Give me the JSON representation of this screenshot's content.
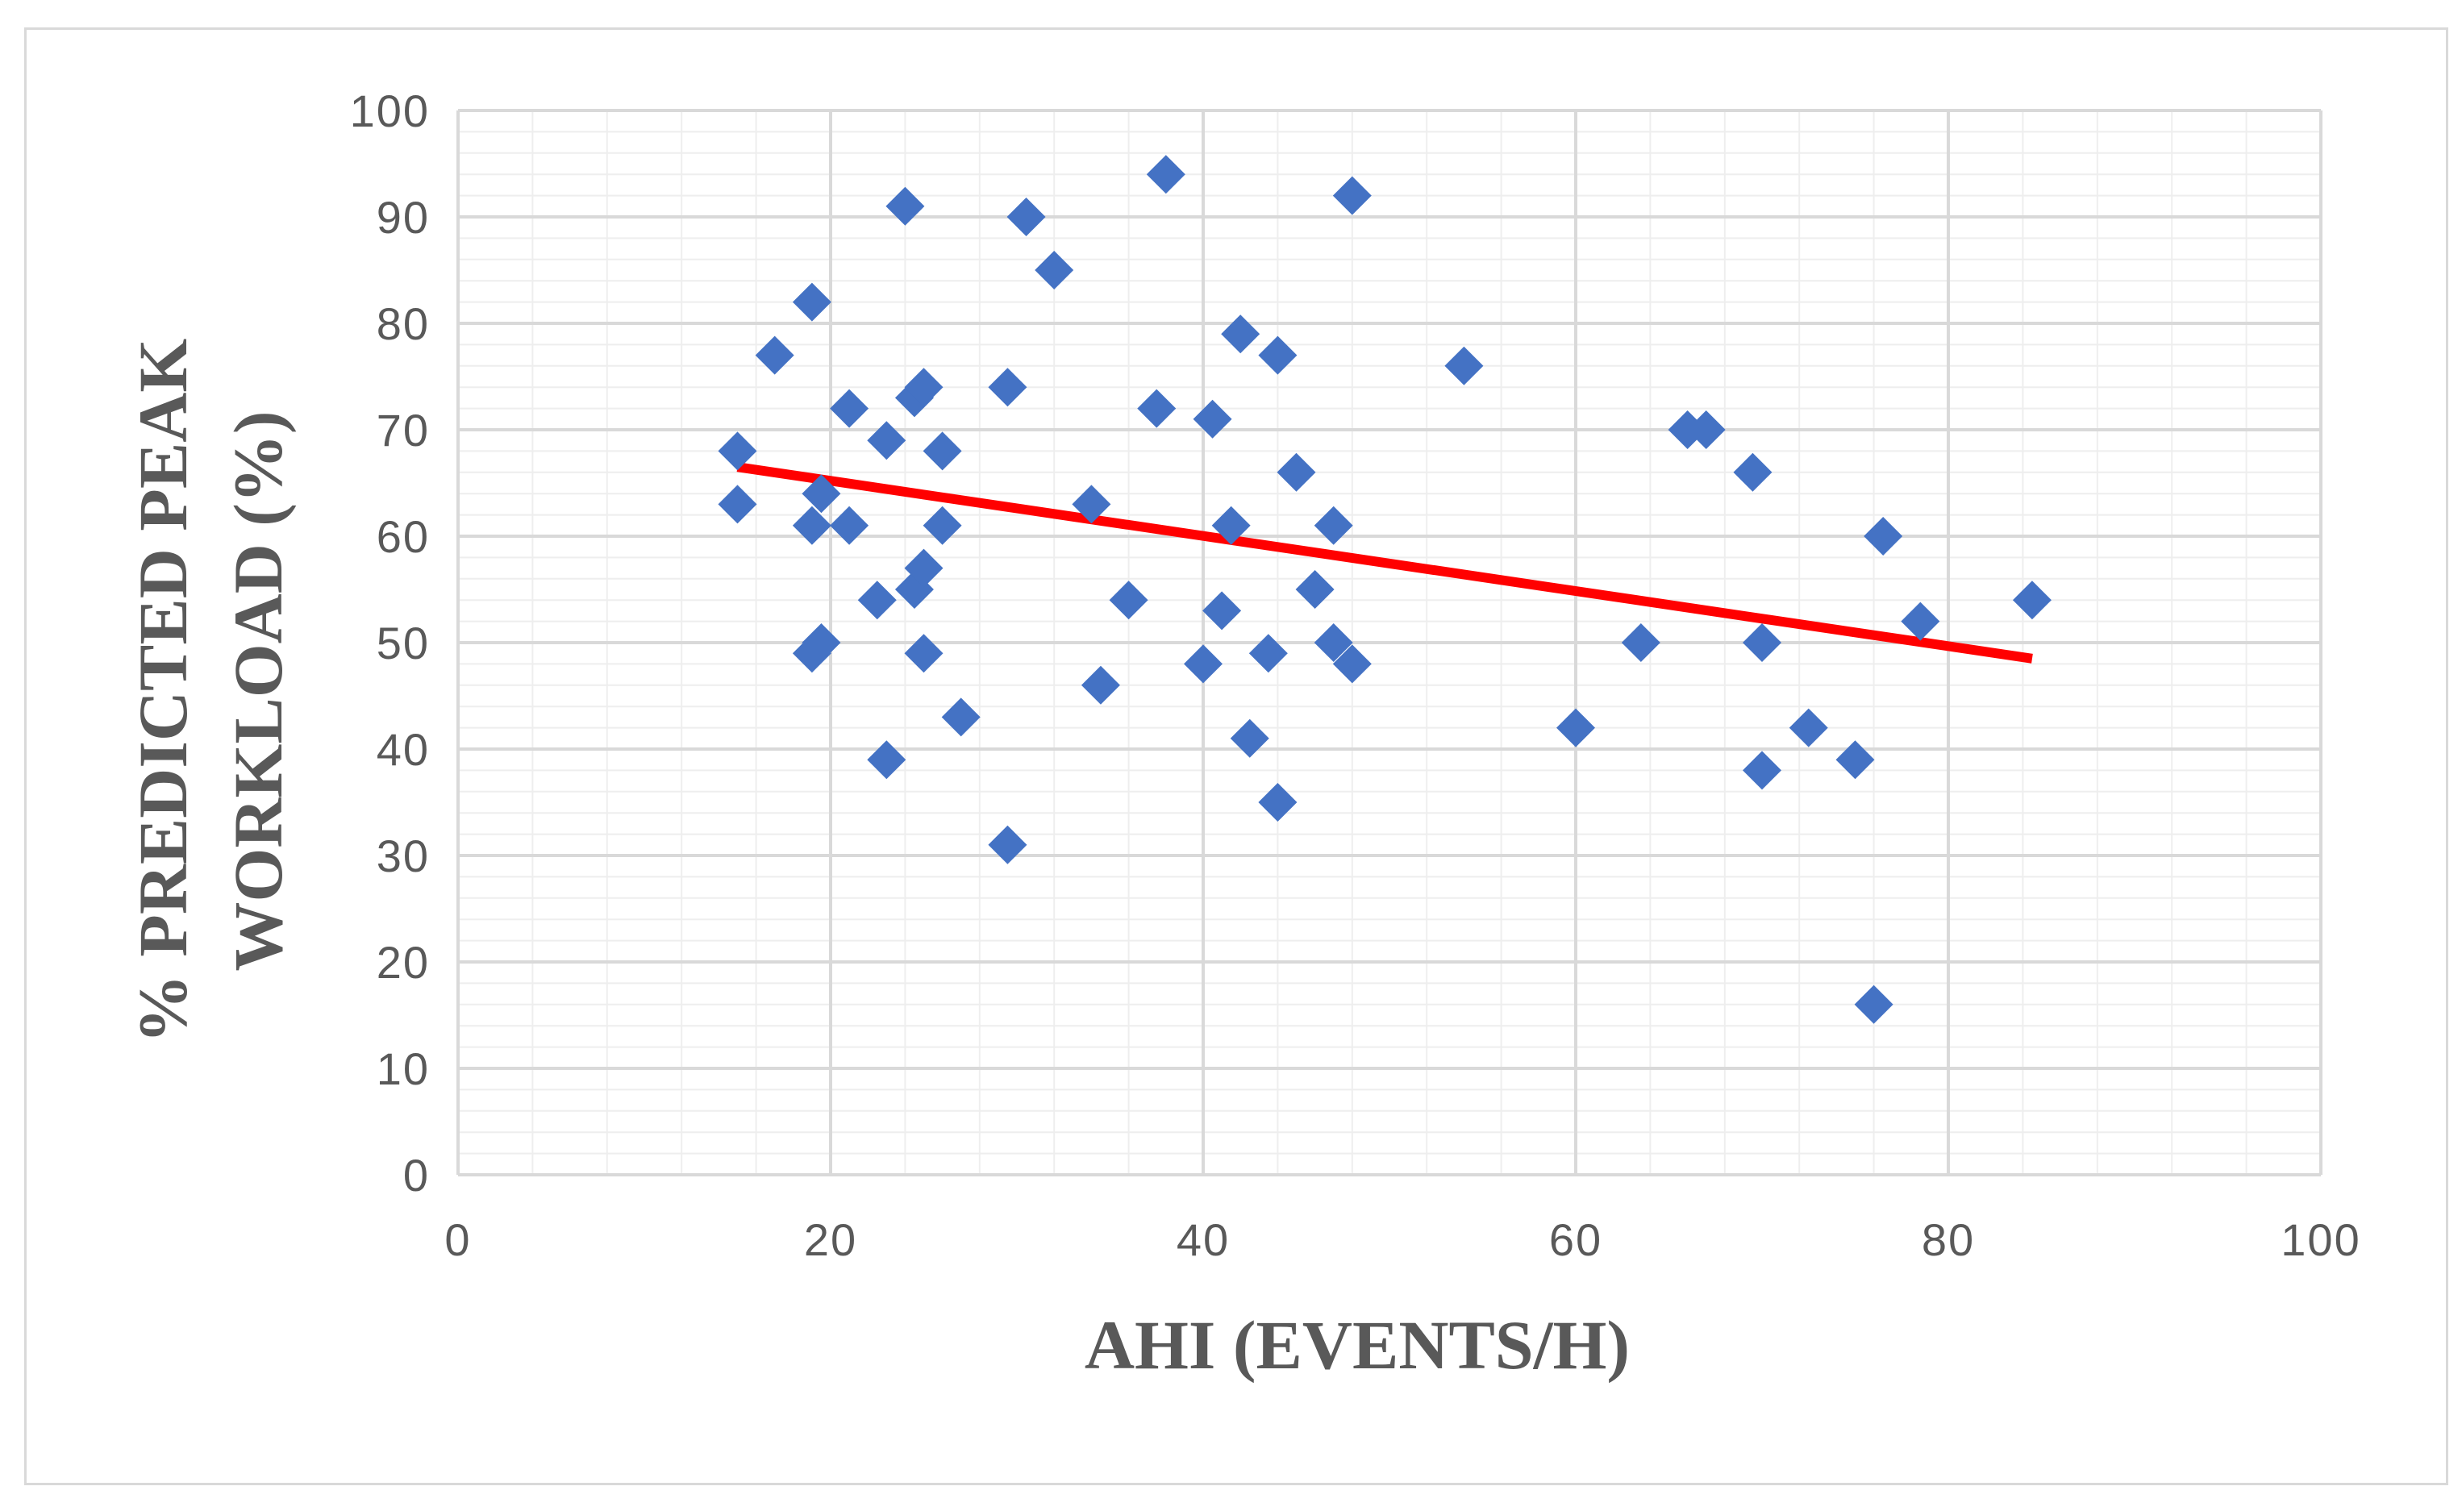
{
  "chart_data": {
    "type": "scatter",
    "xlabel": "AHI (EVENTS/H)",
    "ylabel_lines": [
      "% PREDICTED PEAK",
      "WORKLOAD (%)"
    ],
    "xlim": [
      0,
      100
    ],
    "ylim": [
      0,
      100
    ],
    "x_ticks": [
      "0",
      "20",
      "40",
      "60",
      "80",
      "100"
    ],
    "y_ticks": [
      "0",
      "10",
      "20",
      "30",
      "40",
      "50",
      "60",
      "70",
      "80",
      "90",
      "100"
    ],
    "grid": true,
    "minor_grid": true,
    "marker": "diamond",
    "colors": {
      "points": "#4472c4",
      "trendline": "#ff0000",
      "major_grid": "#d9d9d9",
      "minor_grid": "#eeeeee",
      "text": "#595959"
    },
    "points": [
      {
        "x": 15,
        "y": 68
      },
      {
        "x": 15,
        "y": 63
      },
      {
        "x": 17,
        "y": 77
      },
      {
        "x": 19,
        "y": 82
      },
      {
        "x": 19,
        "y": 61
      },
      {
        "x": 19.5,
        "y": 64
      },
      {
        "x": 19,
        "y": 49
      },
      {
        "x": 19.5,
        "y": 50
      },
      {
        "x": 21,
        "y": 72
      },
      {
        "x": 21,
        "y": 61
      },
      {
        "x": 22.5,
        "y": 54
      },
      {
        "x": 23,
        "y": 69
      },
      {
        "x": 23,
        "y": 39
      },
      {
        "x": 24,
        "y": 91
      },
      {
        "x": 24.5,
        "y": 73
      },
      {
        "x": 25,
        "y": 74
      },
      {
        "x": 24.5,
        "y": 55
      },
      {
        "x": 25,
        "y": 57
      },
      {
        "x": 25,
        "y": 49
      },
      {
        "x": 26,
        "y": 68
      },
      {
        "x": 26,
        "y": 61
      },
      {
        "x": 27,
        "y": 43
      },
      {
        "x": 29.5,
        "y": 74
      },
      {
        "x": 29.5,
        "y": 31
      },
      {
        "x": 30.5,
        "y": 90
      },
      {
        "x": 32,
        "y": 85
      },
      {
        "x": 34,
        "y": 63
      },
      {
        "x": 34.5,
        "y": 46
      },
      {
        "x": 36,
        "y": 54
      },
      {
        "x": 37.5,
        "y": 72
      },
      {
        "x": 38,
        "y": 94
      },
      {
        "x": 40,
        "y": 48
      },
      {
        "x": 40.5,
        "y": 71
      },
      {
        "x": 41,
        "y": 53
      },
      {
        "x": 41.5,
        "y": 61
      },
      {
        "x": 42,
        "y": 79
      },
      {
        "x": 42.5,
        "y": 41
      },
      {
        "x": 43.5,
        "y": 49
      },
      {
        "x": 44,
        "y": 77
      },
      {
        "x": 44,
        "y": 35
      },
      {
        "x": 45,
        "y": 66
      },
      {
        "x": 46,
        "y": 55
      },
      {
        "x": 47,
        "y": 61
      },
      {
        "x": 47,
        "y": 50
      },
      {
        "x": 48,
        "y": 48
      },
      {
        "x": 48,
        "y": 92
      },
      {
        "x": 54,
        "y": 76
      },
      {
        "x": 60,
        "y": 42
      },
      {
        "x": 63.5,
        "y": 50
      },
      {
        "x": 66,
        "y": 70
      },
      {
        "x": 67,
        "y": 70
      },
      {
        "x": 69.5,
        "y": 66
      },
      {
        "x": 70,
        "y": 50
      },
      {
        "x": 70,
        "y": 38
      },
      {
        "x": 72.5,
        "y": 42
      },
      {
        "x": 75,
        "y": 39
      },
      {
        "x": 76,
        "y": 16
      },
      {
        "x": 76.5,
        "y": 60
      },
      {
        "x": 78.5,
        "y": 52
      },
      {
        "x": 84.5,
        "y": 54
      }
    ],
    "trendline": {
      "type": "linear",
      "x": [
        15,
        84.5
      ],
      "y": [
        66.5,
        48.5
      ]
    }
  }
}
